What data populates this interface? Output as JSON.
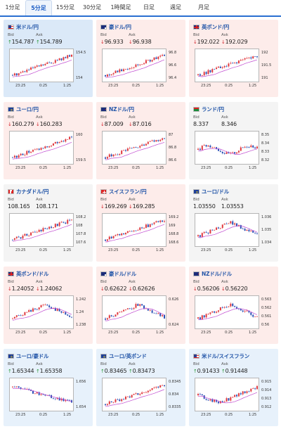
{
  "tabs": [
    {
      "label": "1分足"
    },
    {
      "label": "5分足",
      "active": true
    },
    {
      "label": "15分足"
    },
    {
      "label": "30分足"
    },
    {
      "label": "1時間足"
    },
    {
      "label": "日足"
    },
    {
      "label": "週足"
    },
    {
      "label": "月足"
    }
  ],
  "labels": {
    "bid": "Bid",
    "ask": "Ask"
  },
  "time_ticks": [
    "23:25",
    "0:25",
    "1:25"
  ],
  "colors": {
    "up_candle": "#e0383e",
    "down_candle": "#2a4fb5",
    "ma": "#c04ad0",
    "up_arrow": "#2a9a3a",
    "down_arrow": "#d2222a"
  },
  "cards": [
    {
      "pair": "米ドル/円",
      "flag": "us",
      "bg": "sel",
      "bid": "154.787",
      "ask": "154.789",
      "dir": "up",
      "yticks": [
        "154.5",
        "154"
      ],
      "trend": "up"
    },
    {
      "pair": "豪ドル/円",
      "flag": "au",
      "bg": "down",
      "bid": "96.933",
      "ask": "96.938",
      "dir": "down",
      "yticks": [
        "96.8",
        "96.6",
        "96.4"
      ],
      "trend": "up"
    },
    {
      "pair": "英ポンド/円",
      "flag": "uk",
      "bg": "down",
      "bid": "192.022",
      "ask": "192.029",
      "dir": "down",
      "yticks": [
        "192",
        "191.5",
        "191"
      ],
      "trend": "up"
    },
    {
      "pair": "ユーロ/円",
      "flag": "eu",
      "bg": "down",
      "bid": "160.279",
      "ask": "160.283",
      "dir": "down",
      "yticks": [
        "160",
        "159.5"
      ],
      "trend": "up"
    },
    {
      "pair": "NZドル/円",
      "flag": "nz",
      "bg": "down",
      "bid": "87.009",
      "ask": "87.016",
      "dir": "down",
      "yticks": [
        "87",
        "86.8",
        "86.6"
      ],
      "trend": "up"
    },
    {
      "pair": "ランド/円",
      "flag": "za",
      "bg": "flat",
      "bid": "8.337",
      "ask": "8.346",
      "dir": "none",
      "yticks": [
        "8.35",
        "8.34",
        "8.33",
        "8.32"
      ],
      "trend": "flat"
    },
    {
      "pair": "カナダドル/円",
      "flag": "ca",
      "bg": "flat",
      "bid": "108.165",
      "ask": "108.171",
      "dir": "none",
      "yticks": [
        "108.2",
        "108",
        "107.8",
        "107.6"
      ],
      "trend": "up"
    },
    {
      "pair": "スイスフラン/円",
      "flag": "ch",
      "bg": "down",
      "bid": "169.269",
      "ask": "169.285",
      "dir": "down",
      "yticks": [
        "169.2",
        "169",
        "168.8",
        "168.6"
      ],
      "trend": "up"
    },
    {
      "pair": "ユーロ/ドル",
      "flag": "eu",
      "bg": "flat",
      "bid": "1.03550",
      "ask": "1.03553",
      "dir": "none",
      "yticks": [
        "1.036",
        "1.035",
        "1.034"
      ],
      "trend": "humpdown"
    },
    {
      "pair": "英ポンド/ドル",
      "flag": "uk",
      "bg": "down",
      "bid": "1.24052",
      "ask": "1.24062",
      "dir": "down",
      "yticks": [
        "1.242",
        "1.24",
        "1.238"
      ],
      "trend": "humpdown"
    },
    {
      "pair": "豪ドル/ドル",
      "flag": "au",
      "bg": "down",
      "bid": "0.62622",
      "ask": "0.62626",
      "dir": "down",
      "yticks": [
        "0.626",
        "0.624"
      ],
      "trend": "humpdown"
    },
    {
      "pair": "NZドル/ドル",
      "flag": "nz",
      "bg": "down",
      "bid": "0.56206",
      "ask": "0.56220",
      "dir": "down",
      "yticks": [
        "0.563",
        "0.562",
        "0.561",
        "0.56"
      ],
      "trend": "humpdown"
    },
    {
      "pair": "ユーロ/豪ドル",
      "flag": "eu",
      "bg": "up",
      "bid": "1.65344",
      "ask": "1.65358",
      "dir": "up",
      "yticks": [
        "1.656",
        "1.654"
      ],
      "trend": "down"
    },
    {
      "pair": "ユーロ/英ポンド",
      "flag": "eu",
      "bg": "up",
      "bid": "0.83465",
      "ask": "0.83473",
      "dir": "up",
      "yticks": [
        "0.8345",
        "0.834",
        "0.8335"
      ],
      "trend": "up"
    },
    {
      "pair": "米ドル/スイスフラン",
      "flag": "us",
      "bg": "up",
      "bid": "0.91433",
      "ask": "0.91448",
      "dir": "up",
      "yticks": [
        "0.915",
        "0.914",
        "0.913",
        "0.912"
      ],
      "trend": "dipup"
    }
  ]
}
